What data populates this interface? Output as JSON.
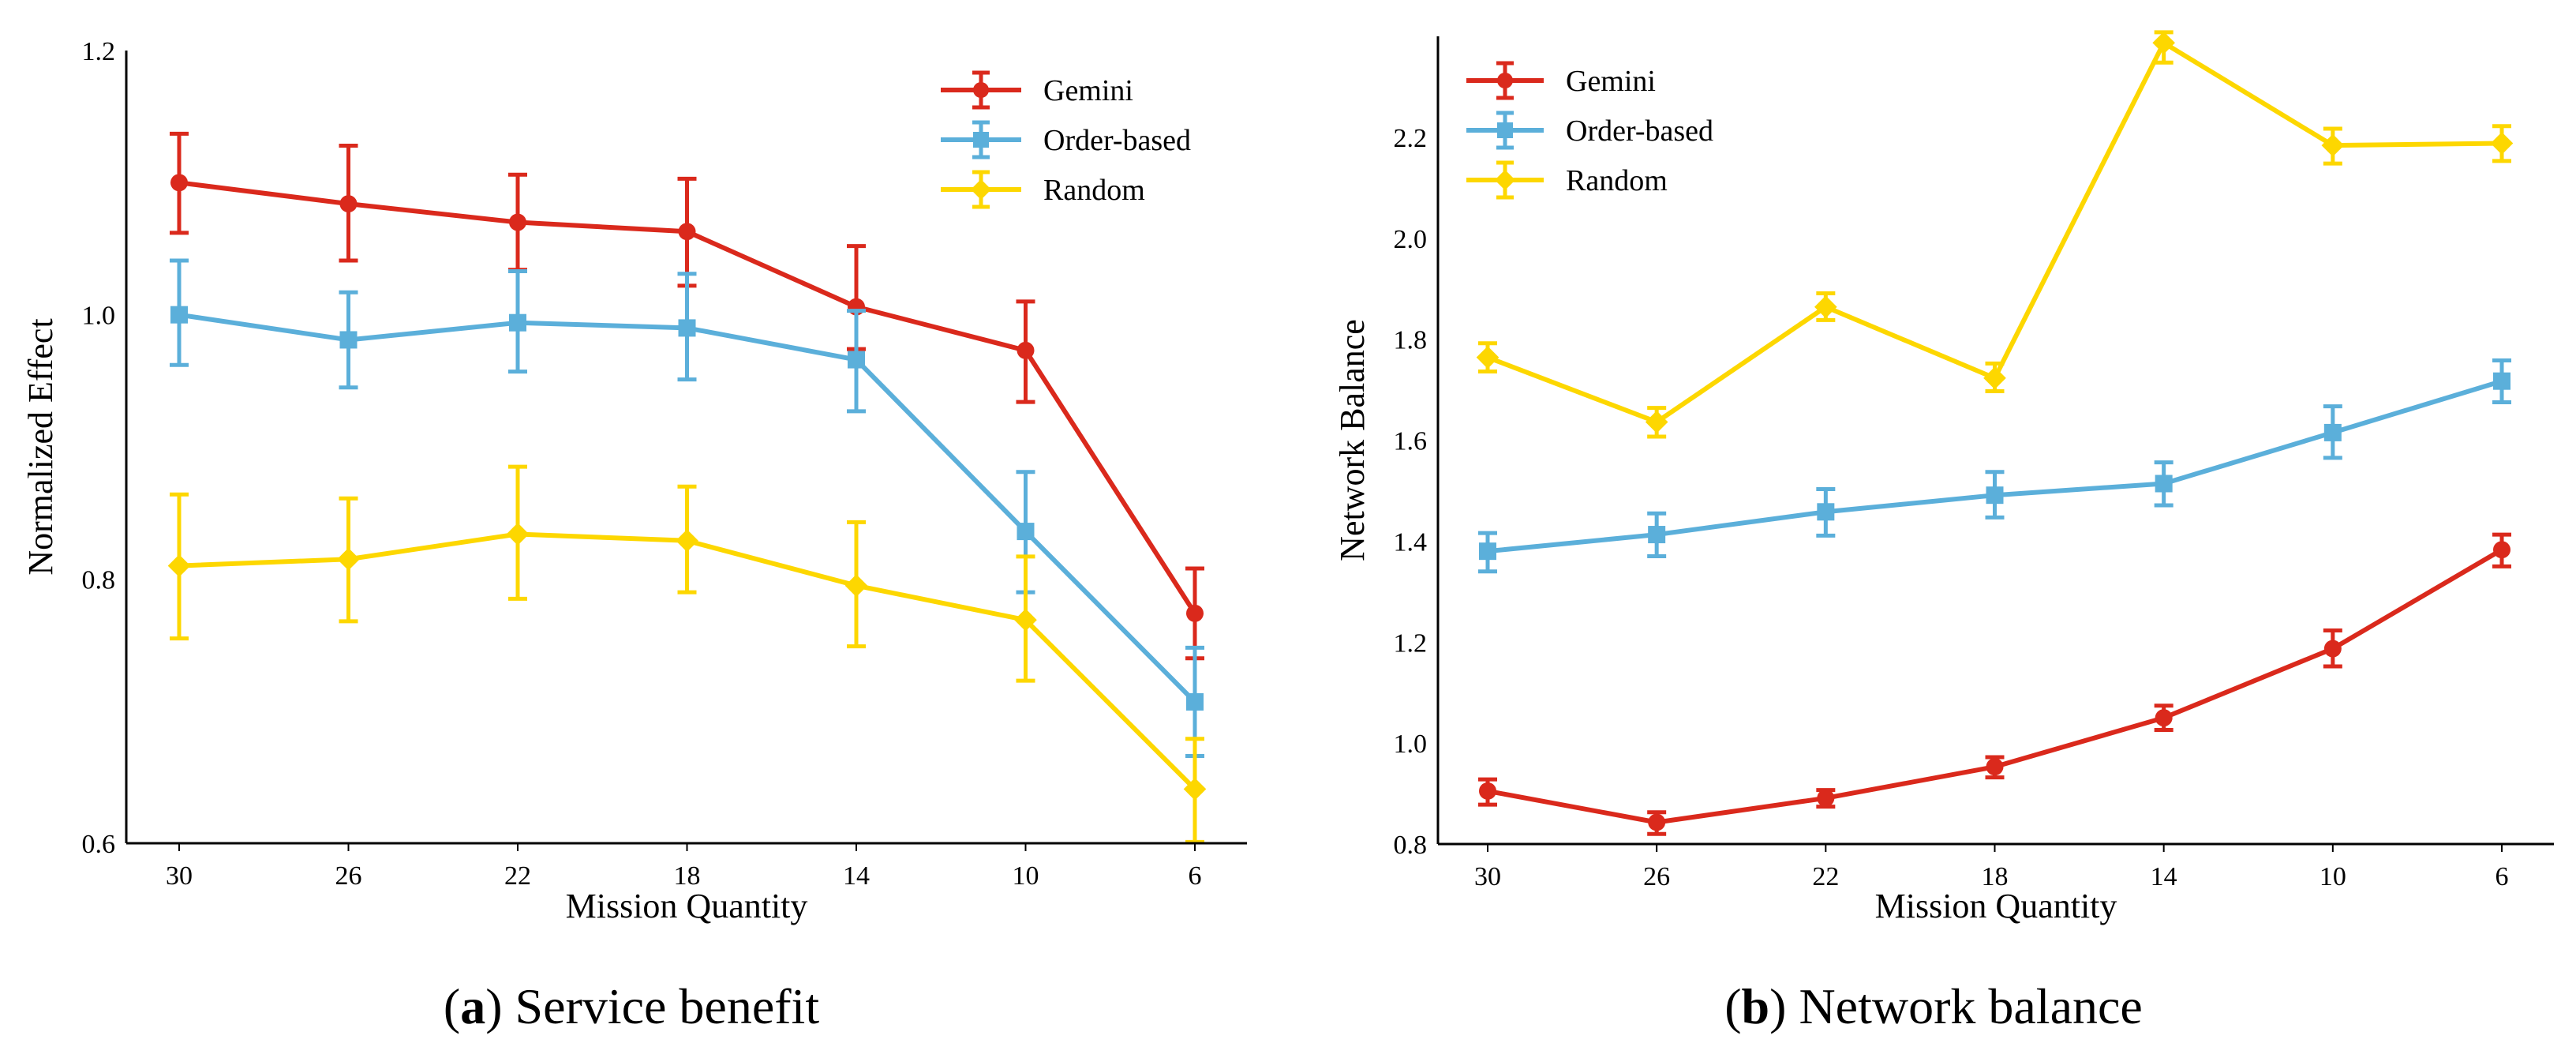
{
  "colors": {
    "gemini": "#DA291C",
    "order_based": "#5BAFDA",
    "random": "#FDD700",
    "axis": "#000000",
    "background": "#FFFFFF"
  },
  "chart_data": [
    {
      "id": "service-benefit",
      "type": "line",
      "caption_letter": "a",
      "caption_text": "Service benefit",
      "title": "",
      "xlabel": "Mission Quantity",
      "ylabel": "Normalized Effect",
      "x": [
        30,
        26,
        22,
        18,
        14,
        10,
        6
      ],
      "x_tick_labels": [
        "30",
        "26",
        "22",
        "18",
        "14",
        "10",
        "6"
      ],
      "ylim": [
        0.6,
        1.2
      ],
      "y_ticks": [
        0.6,
        0.8,
        1.0,
        1.2
      ],
      "y_tick_labels": [
        "0.6",
        "0.8",
        "1.0",
        "1.2"
      ],
      "grid": false,
      "legend_position": "top-right",
      "series": [
        {
          "key": "gemini",
          "name": "Gemini",
          "marker": "circle",
          "values": [
            1.1,
            1.084,
            1.07,
            1.063,
            1.006,
            0.973,
            0.774
          ],
          "error_upper": [
            1.137,
            1.128,
            1.106,
            1.103,
            1.052,
            1.01,
            0.808
          ],
          "error_lower": [
            1.062,
            1.041,
            1.034,
            1.022,
            0.974,
            0.934,
            0.74
          ]
        },
        {
          "key": "order_based",
          "name": "Order-based",
          "marker": "square",
          "values": [
            1.0,
            0.981,
            0.994,
            0.99,
            0.966,
            0.836,
            0.707
          ],
          "error_upper": [
            1.041,
            1.017,
            1.033,
            1.031,
            1.003,
            0.881,
            0.748
          ],
          "error_lower": [
            0.962,
            0.945,
            0.957,
            0.951,
            0.927,
            0.79,
            0.666
          ]
        },
        {
          "key": "random",
          "name": "Random",
          "marker": "diamond",
          "values": [
            0.81,
            0.815,
            0.834,
            0.829,
            0.795,
            0.769,
            0.641
          ],
          "error_upper": [
            0.864,
            0.861,
            0.885,
            0.87,
            0.843,
            0.817,
            0.679
          ],
          "error_lower": [
            0.755,
            0.768,
            0.785,
            0.79,
            0.749,
            0.723,
            0.601
          ]
        }
      ]
    },
    {
      "id": "network-balance",
      "type": "line",
      "caption_letter": "b",
      "caption_text": "Network balance",
      "title": "",
      "xlabel": "Mission Quantity",
      "ylabel": "Network Balance",
      "x": [
        30,
        26,
        22,
        18,
        14,
        10,
        6
      ],
      "x_tick_labels": [
        "30",
        "26",
        "22",
        "18",
        "14",
        "10",
        "6"
      ],
      "ylim": [
        0.8,
        2.4
      ],
      "y_ticks": [
        0.8,
        1.0,
        1.2,
        1.4,
        1.6,
        1.8,
        2.0,
        2.2
      ],
      "y_tick_labels": [
        "0.8",
        "1.0",
        "1.2",
        "1.4",
        "1.6",
        "1.8",
        "2.0",
        "2.2"
      ],
      "grid": false,
      "legend_position": "top-left",
      "series": [
        {
          "key": "gemini",
          "name": "Gemini",
          "marker": "circle",
          "values": [
            0.905,
            0.843,
            0.891,
            0.953,
            1.05,
            1.187,
            1.383
          ],
          "error_upper": [
            0.928,
            0.863,
            0.907,
            0.972,
            1.074,
            1.223,
            1.413
          ],
          "error_lower": [
            0.878,
            0.82,
            0.874,
            0.932,
            1.026,
            1.152,
            1.35
          ]
        },
        {
          "key": "order_based",
          "name": "Order-based",
          "marker": "square",
          "values": [
            1.38,
            1.413,
            1.458,
            1.491,
            1.514,
            1.615,
            1.717
          ],
          "error_upper": [
            1.416,
            1.455,
            1.503,
            1.537,
            1.556,
            1.667,
            1.758
          ],
          "error_lower": [
            1.34,
            1.37,
            1.411,
            1.447,
            1.471,
            1.565,
            1.675
          ]
        },
        {
          "key": "random",
          "name": "Random",
          "marker": "diamond",
          "values": [
            1.764,
            1.636,
            1.864,
            1.723,
            2.387,
            2.184,
            2.188
          ],
          "error_upper": [
            1.792,
            1.664,
            1.891,
            1.752,
            2.408,
            2.217,
            2.222
          ],
          "error_lower": [
            1.736,
            1.607,
            1.838,
            1.697,
            2.348,
            2.148,
            2.153
          ]
        }
      ]
    }
  ]
}
